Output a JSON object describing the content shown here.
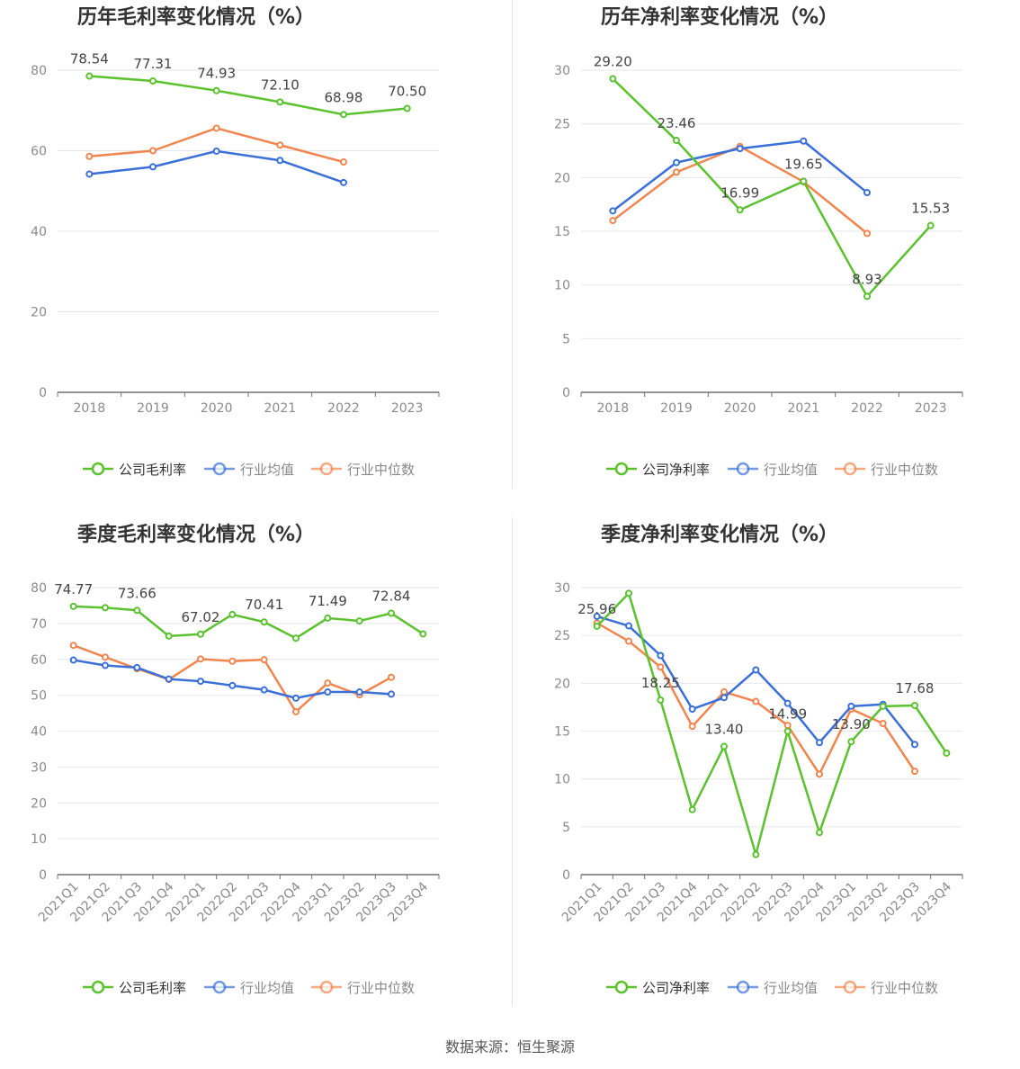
{
  "colors": {
    "company": "#5bc12e",
    "avg": "#3a6fd8",
    "median": "#f0854e",
    "grid": "#e6e6ee",
    "axis": "#6e7079",
    "tick": "#8a8a8a",
    "title": "#333333"
  },
  "source": "数据来源：恒生聚源",
  "chart_data": [
    {
      "type": "line",
      "title": "历年毛利率变化情况（%）",
      "categories": [
        "2018",
        "2019",
        "2020",
        "2021",
        "2022",
        "2023"
      ],
      "ylim": [
        0,
        80
      ],
      "yticks": [
        0,
        20,
        40,
        60,
        80
      ],
      "grid": true,
      "legend_position": "bottom",
      "series": [
        {
          "name": "公司毛利率",
          "role": "company",
          "values": [
            78.54,
            77.31,
            74.93,
            72.1,
            68.98,
            70.5
          ],
          "labels": [
            "78.54",
            "77.31",
            "74.93",
            "72.10",
            "68.98",
            "70.50"
          ]
        },
        {
          "name": "行业均值",
          "role": "avg",
          "values": [
            54.2,
            56.0,
            59.9,
            57.6,
            52.1,
            null
          ]
        },
        {
          "name": "行业中位数",
          "role": "median",
          "values": [
            58.6,
            60.0,
            65.6,
            61.4,
            57.2,
            null
          ]
        }
      ]
    },
    {
      "type": "line",
      "title": "历年净利率变化情况（%）",
      "categories": [
        "2018",
        "2019",
        "2020",
        "2021",
        "2022",
        "2023"
      ],
      "ylim": [
        0,
        30
      ],
      "yticks": [
        0,
        5,
        10,
        15,
        20,
        25,
        30
      ],
      "grid": true,
      "legend_position": "bottom",
      "series": [
        {
          "name": "公司净利率",
          "role": "company",
          "values": [
            29.2,
            23.46,
            16.99,
            19.65,
            8.93,
            15.53
          ],
          "labels": [
            "29.20",
            "23.46",
            "16.99",
            "19.65",
            "8.93",
            "15.53"
          ]
        },
        {
          "name": "行业均值",
          "role": "avg",
          "values": [
            16.9,
            21.4,
            22.7,
            23.4,
            18.6,
            null
          ]
        },
        {
          "name": "行业中位数",
          "role": "median",
          "values": [
            16.0,
            20.5,
            22.9,
            19.6,
            14.8,
            null
          ]
        }
      ]
    },
    {
      "type": "line",
      "title": "季度毛利率变化情况（%）",
      "categories": [
        "2021Q1",
        "2021Q2",
        "2021Q3",
        "2021Q4",
        "2022Q1",
        "2022Q2",
        "2022Q3",
        "2022Q4",
        "2023Q1",
        "2023Q2",
        "2023Q3",
        "2023Q4"
      ],
      "ylim": [
        0,
        80
      ],
      "yticks": [
        0,
        10,
        20,
        30,
        40,
        50,
        60,
        70,
        80
      ],
      "grid": true,
      "legend_position": "bottom",
      "series": [
        {
          "name": "公司毛利率",
          "role": "company",
          "values": [
            74.77,
            74.4,
            73.66,
            66.5,
            67.02,
            72.5,
            70.41,
            65.9,
            71.49,
            70.7,
            72.84,
            67.1
          ],
          "labels": [
            "74.77",
            "",
            "73.66",
            "",
            "67.02",
            "",
            "70.41",
            "",
            "71.49",
            "",
            "72.84",
            ""
          ]
        },
        {
          "name": "行业均值",
          "role": "avg",
          "values": [
            59.8,
            58.3,
            57.7,
            54.5,
            53.9,
            52.7,
            51.5,
            49.2,
            50.9,
            50.9,
            50.3,
            null
          ]
        },
        {
          "name": "行业中位数",
          "role": "median",
          "values": [
            63.9,
            60.6,
            57.4,
            54.4,
            60.1,
            59.5,
            59.9,
            45.4,
            53.4,
            50.1,
            55.0,
            null
          ]
        }
      ]
    },
    {
      "type": "line",
      "title": "季度净利率变化情况（%）",
      "categories": [
        "2021Q1",
        "2021Q2",
        "2021Q3",
        "2021Q4",
        "2022Q1",
        "2022Q2",
        "2022Q3",
        "2022Q4",
        "2023Q1",
        "2023Q2",
        "2023Q3",
        "2023Q4"
      ],
      "ylim": [
        0,
        30
      ],
      "yticks": [
        0,
        5,
        10,
        15,
        20,
        25,
        30
      ],
      "grid": true,
      "legend_position": "bottom",
      "series": [
        {
          "name": "公司净利率",
          "role": "company",
          "values": [
            25.96,
            29.4,
            18.25,
            6.8,
            13.4,
            2.1,
            14.99,
            4.4,
            13.9,
            17.6,
            17.68,
            12.7
          ],
          "labels": [
            "25.96",
            "",
            "18.25",
            "",
            "13.40",
            "",
            "14.99",
            "",
            "13.90",
            "",
            "17.68",
            ""
          ]
        },
        {
          "name": "行业均值",
          "role": "avg",
          "values": [
            27.0,
            26.0,
            22.9,
            17.3,
            18.5,
            21.4,
            17.9,
            13.8,
            17.6,
            17.8,
            13.6,
            null
          ]
        },
        {
          "name": "行业中位数",
          "role": "median",
          "values": [
            26.3,
            24.4,
            21.7,
            15.5,
            19.1,
            18.1,
            15.6,
            10.5,
            17.3,
            15.8,
            10.8,
            null
          ]
        }
      ]
    }
  ]
}
